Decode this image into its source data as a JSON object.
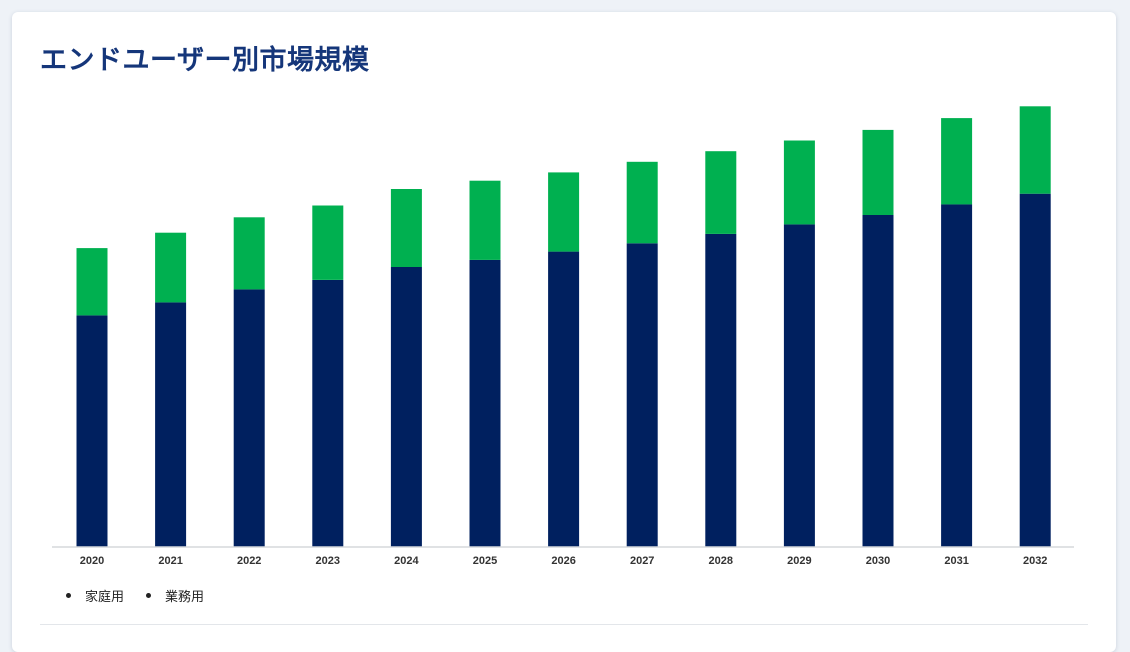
{
  "header": {
    "title": "エンドユーザー別市場規模"
  },
  "colors": {
    "household": "#00205f",
    "commercial": "#00b050"
  },
  "chart_data": {
    "type": "bar",
    "stacked": true,
    "title": "エンドユーザー別市場規模",
    "xlabel": "",
    "ylabel": "",
    "categories": [
      "2020",
      "2021",
      "2022",
      "2023",
      "2024",
      "2025",
      "2026",
      "2027",
      "2028",
      "2029",
      "2030",
      "2031",
      "2032"
    ],
    "series": [
      {
        "name": "家庭用",
        "color": "#00205f",
        "values": [
          196,
          207,
          218,
          226,
          237,
          243,
          250,
          257,
          265,
          273,
          281,
          290,
          299
        ]
      },
      {
        "name": "業務用",
        "color": "#00b050",
        "values": [
          57,
          59,
          61,
          63,
          66,
          67,
          67,
          69,
          70,
          71,
          72,
          73,
          74
        ]
      }
    ],
    "ylim": [
      0,
      380
    ],
    "grid": false,
    "legend": "bottom-left"
  }
}
